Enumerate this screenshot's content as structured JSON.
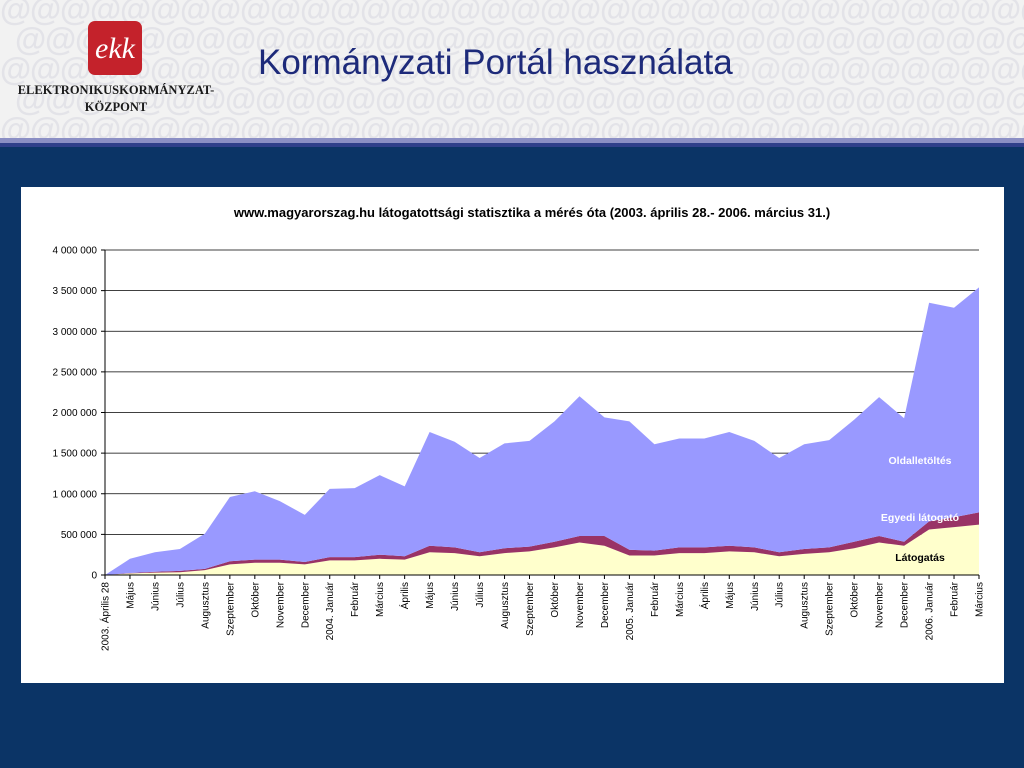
{
  "header": {
    "title": "Kormányzati Portál használata",
    "org_name_line1": "ELEKTRONIKUSKORMÁNYZAT-",
    "org_name_line2": "KÖZPONT",
    "logo_text": "ekk",
    "background_color": "#f2f2f2",
    "title_color": "#1d2a7a",
    "logo_color": "#c4222b"
  },
  "slide": {
    "background_color": "#0b3466"
  },
  "chart_data": {
    "type": "area",
    "stacked": true,
    "title": "www.magyarorszag.hu látogatottsági statisztika a mérés óta (2003. április 28.- 2006. március 31.)",
    "xlabel": "",
    "ylabel": "",
    "ylim": [
      0,
      4000000
    ],
    "yticks": [
      "0",
      "500 000",
      "1 000 000",
      "1 500 000",
      "2 000 000",
      "2 500 000",
      "3 000 000",
      "3 500 000",
      "4 000 000"
    ],
    "grid": true,
    "legend": "inline labels on areas",
    "categories": [
      "2003. Április 28",
      "Május",
      "Június",
      "Július",
      "Augusztus",
      "Szeptember",
      "Október",
      "November",
      "December",
      "2004. Január",
      "Február",
      "Március",
      "Április",
      "Május",
      "Június",
      "Július",
      "Augusztus",
      "Szeptember",
      "Október",
      "November",
      "December",
      "2005. Január",
      "Február",
      "Március",
      "Április",
      "Május",
      "Június",
      "Július",
      "Augusztus",
      "Szeptember",
      "Október",
      "November",
      "December",
      "2006. Január",
      "Február",
      "Március"
    ],
    "series": [
      {
        "name": "Látogatás",
        "color": "#ffffcc",
        "values": [
          0,
          20000,
          30000,
          35000,
          60000,
          130000,
          150000,
          150000,
          130000,
          180000,
          180000,
          200000,
          190000,
          280000,
          270000,
          230000,
          270000,
          290000,
          340000,
          400000,
          360000,
          240000,
          240000,
          270000,
          270000,
          290000,
          280000,
          230000,
          260000,
          280000,
          330000,
          400000,
          360000,
          560000,
          590000,
          620000
        ]
      },
      {
        "name": "Egyedi látogató",
        "color": "#993366",
        "values": [
          0,
          5000,
          10000,
          15000,
          15000,
          40000,
          40000,
          40000,
          30000,
          40000,
          40000,
          50000,
          40000,
          80000,
          70000,
          50000,
          60000,
          60000,
          70000,
          80000,
          120000,
          70000,
          60000,
          70000,
          70000,
          70000,
          60000,
          50000,
          60000,
          60000,
          80000,
          80000,
          50000,
          100000,
          120000,
          150000
        ]
      },
      {
        "name": "Oldalletöltés",
        "color": "#9999ff",
        "values": [
          0,
          175000,
          240000,
          270000,
          435000,
          790000,
          840000,
          720000,
          580000,
          840000,
          850000,
          980000,
          860000,
          1400000,
          1300000,
          1160000,
          1290000,
          1300000,
          1480000,
          1720000,
          1460000,
          1580000,
          1310000,
          1340000,
          1340000,
          1400000,
          1310000,
          1160000,
          1290000,
          1320000,
          1500000,
          1710000,
          1520000,
          2690000,
          2580000,
          2770000
        ]
      }
    ]
  }
}
